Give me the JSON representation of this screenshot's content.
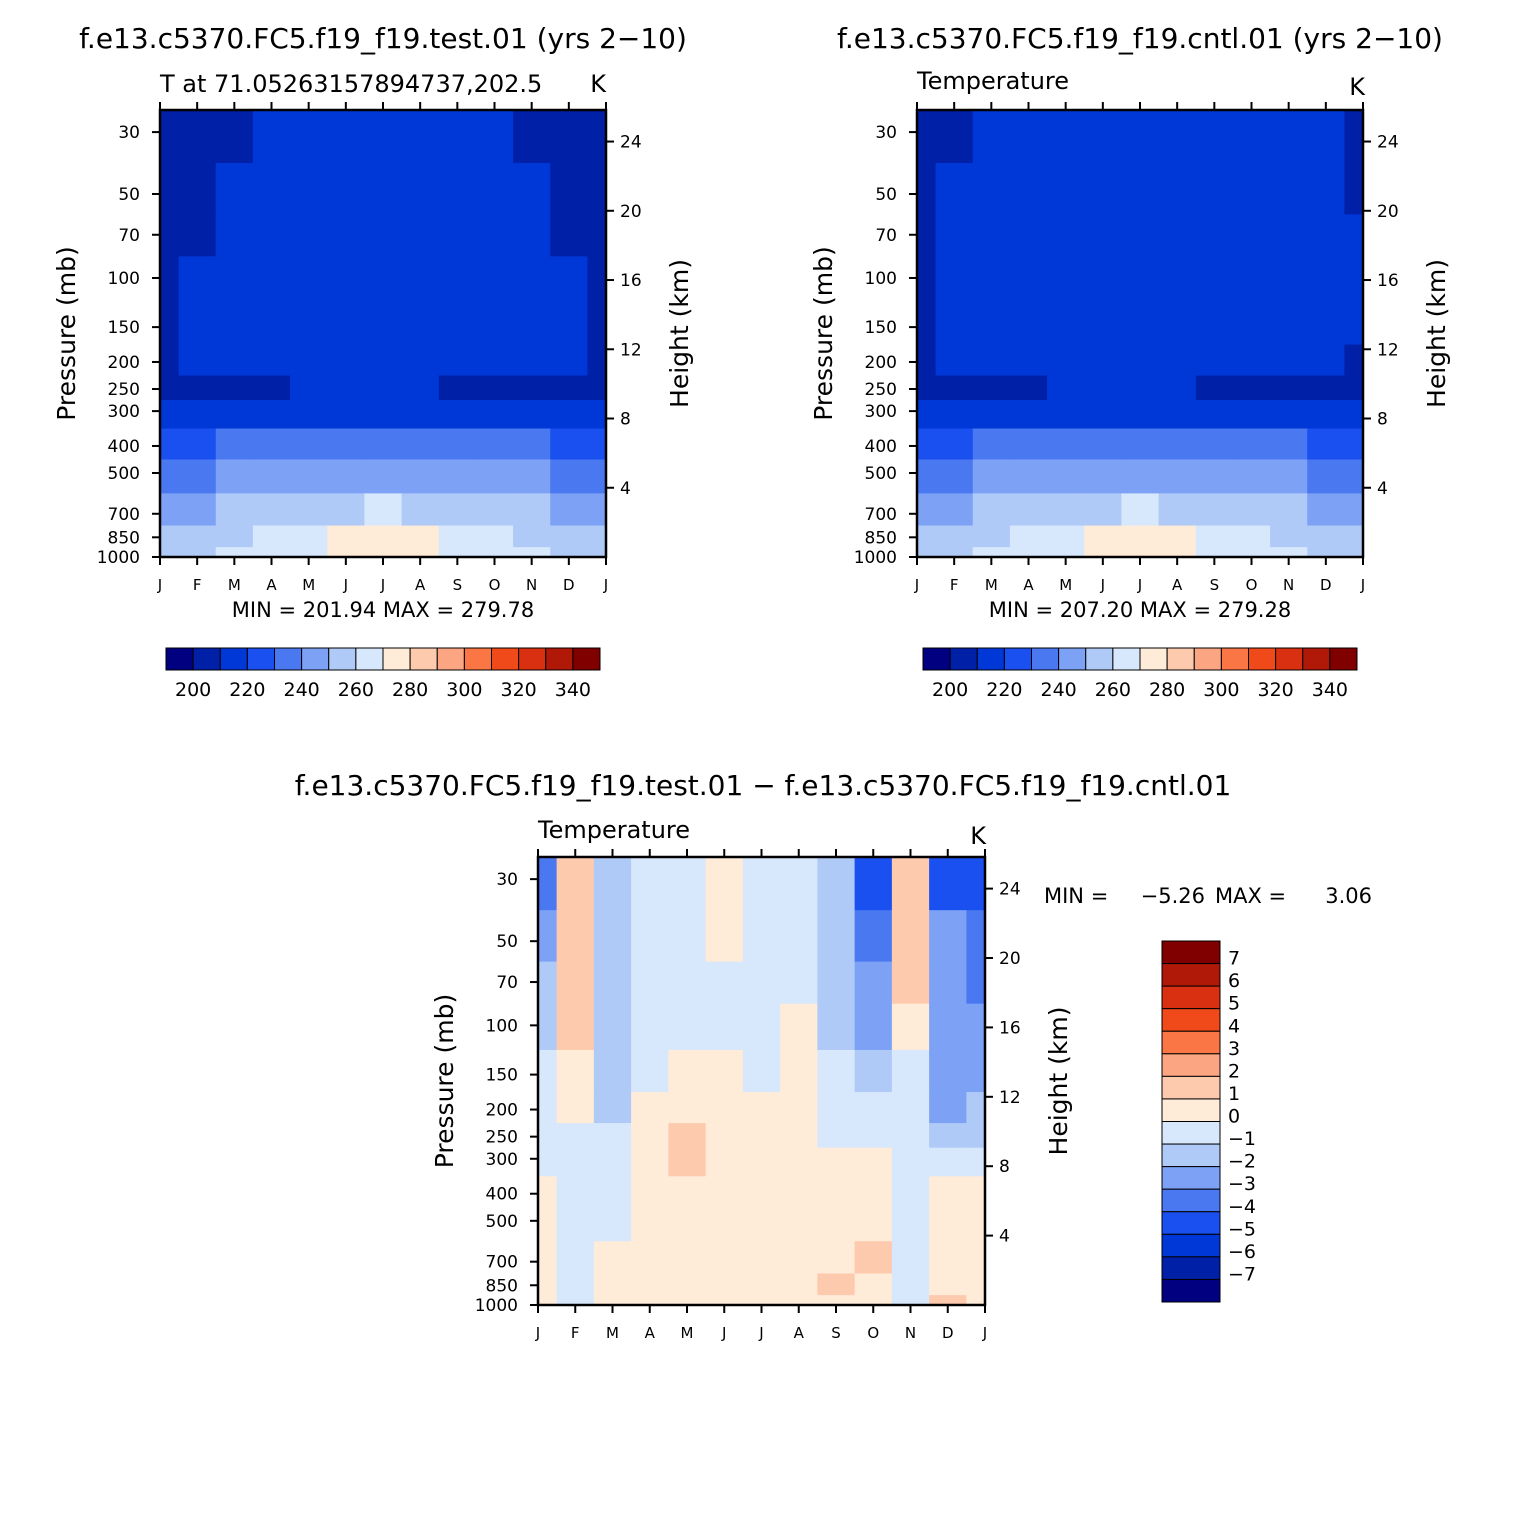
{
  "chart_data": [
    {
      "type": "heatmap",
      "title": "f.e13.c5370.FC5.f19_f19.test.01 (yrs 2−10)",
      "subtitle_left": "T at 71.05263157894737,202.5",
      "subtitle_right": "K",
      "ylabel": "Pressure (mb)",
      "ylabel_right": "Height (km)",
      "x_ticks": [
        "J",
        "F",
        "M",
        "A",
        "M",
        "J",
        "J",
        "A",
        "S",
        "O",
        "N",
        "D",
        "J"
      ],
      "pressure_ticks": [
        30,
        50,
        70,
        100,
        150,
        200,
        250,
        300,
        400,
        500,
        700,
        850,
        1000
      ],
      "height_ticks": [
        24,
        20,
        16,
        12,
        8,
        4
      ],
      "ylim_mb": [
        1000,
        25
      ],
      "stats": "MIN = 201.94 MAX = 279.78",
      "min": 201.94,
      "max": 279.78,
      "colorbar": {
        "labels": [
          "200",
          "220",
          "240",
          "260",
          "280",
          "300",
          "320",
          "340"
        ],
        "colors": [
          "#000080",
          "#0020a8",
          "#0038d8",
          "#1a4ff0",
          "#4a78f0",
          "#7da2f5",
          "#b0caf8",
          "#d8e8fc",
          "#feebd8",
          "#fdcaae",
          "#fba582",
          "#fa7644",
          "#f04a1a",
          "#d83010",
          "#b01808",
          "#800000"
        ]
      },
      "grid": [
        [
          205,
          204,
          208,
          212,
          212,
          212,
          212,
          212,
          212,
          210,
          208,
          205,
          205
        ],
        [
          205,
          207,
          210,
          213,
          213,
          213,
          213,
          213,
          212,
          211,
          210,
          207,
          205
        ],
        [
          207,
          209,
          211,
          214,
          214,
          214,
          214,
          214,
          213,
          212,
          212,
          209,
          207
        ],
        [
          208,
          210,
          211,
          214,
          214,
          214,
          214,
          214,
          213,
          212,
          215,
          210,
          208
        ],
        [
          209,
          210,
          211,
          214,
          214,
          214,
          214,
          214,
          213,
          214,
          215,
          210,
          209
        ],
        [
          209,
          210,
          211,
          212,
          214,
          214,
          214,
          214,
          214,
          213,
          212,
          210,
          209
        ],
        [
          208,
          209,
          209,
          209,
          210,
          212,
          215,
          212,
          209,
          209,
          209,
          209,
          208
        ],
        [
          210,
          210,
          210,
          211,
          212,
          213,
          216,
          213,
          212,
          211,
          210,
          210,
          210
        ],
        [
          229,
          229,
          230,
          232,
          234,
          236,
          238,
          236,
          234,
          232,
          230,
          229,
          229
        ],
        [
          238,
          238,
          240,
          242,
          244,
          246,
          248,
          246,
          244,
          242,
          240,
          238,
          238
        ],
        [
          248,
          248,
          250,
          253,
          256,
          259,
          261,
          259,
          256,
          253,
          250,
          248,
          248
        ],
        [
          256,
          256,
          258,
          262,
          266,
          270,
          272,
          270,
          266,
          262,
          258,
          256,
          256
        ],
        [
          259,
          259,
          261,
          264,
          268,
          272,
          273,
          272,
          268,
          264,
          261,
          259,
          259
        ]
      ]
    },
    {
      "type": "heatmap",
      "title": "f.e13.c5370.FC5.f19_f19.cntl.01 (yrs 2−10)",
      "subtitle_left": "Temperature",
      "subtitle_right": "K",
      "ylabel": "Pressure (mb)",
      "ylabel_right": "Height (km)",
      "x_ticks": [
        "J",
        "F",
        "M",
        "A",
        "M",
        "J",
        "J",
        "A",
        "S",
        "O",
        "N",
        "D",
        "J"
      ],
      "pressure_ticks": [
        30,
        50,
        70,
        100,
        150,
        200,
        250,
        300,
        400,
        500,
        700,
        850,
        1000
      ],
      "height_ticks": [
        24,
        20,
        16,
        12,
        8,
        4
      ],
      "ylim_mb": [
        1000,
        25
      ],
      "stats": "MIN = 207.20 MAX = 279.28",
      "min": 207.2,
      "max": 279.28,
      "colorbar": {
        "labels": [
          "200",
          "220",
          "240",
          "260",
          "280",
          "300",
          "320",
          "340"
        ],
        "colors": [
          "#000080",
          "#0020a8",
          "#0038d8",
          "#1a4ff0",
          "#4a78f0",
          "#7da2f5",
          "#b0caf8",
          "#d8e8fc",
          "#feebd8",
          "#fdcaae",
          "#fba582",
          "#fa7644",
          "#f04a1a",
          "#d83010",
          "#b01808",
          "#800000"
        ]
      },
      "grid": [
        [
          206,
          208,
          211,
          213,
          213,
          213,
          213,
          213,
          213,
          213,
          212,
          210,
          208
        ],
        [
          208,
          210,
          212,
          214,
          214,
          214,
          214,
          214,
          213,
          213,
          213,
          211,
          209
        ],
        [
          209,
          210,
          211,
          214,
          214,
          214,
          214,
          214,
          214,
          213,
          213,
          211,
          210
        ],
        [
          209,
          210,
          211,
          214,
          214,
          214,
          214,
          214,
          214,
          214,
          213,
          211,
          210
        ],
        [
          209,
          210,
          212,
          214,
          214,
          214,
          214,
          214,
          214,
          214,
          214,
          212,
          210
        ],
        [
          209,
          210,
          211,
          212,
          214,
          214,
          214,
          214,
          213,
          213,
          212,
          211,
          209
        ],
        [
          208,
          209,
          209,
          209,
          210,
          212,
          215,
          212,
          209,
          209,
          209,
          209,
          208
        ],
        [
          210,
          210,
          210,
          211,
          212,
          213,
          216,
          213,
          212,
          211,
          210,
          210,
          210
        ],
        [
          229,
          229,
          230,
          232,
          234,
          236,
          238,
          236,
          234,
          232,
          230,
          229,
          229
        ],
        [
          238,
          238,
          240,
          242,
          244,
          246,
          248,
          246,
          244,
          242,
          240,
          238,
          238
        ],
        [
          248,
          248,
          250,
          253,
          256,
          259,
          261,
          259,
          256,
          253,
          250,
          248,
          248
        ],
        [
          256,
          256,
          258,
          262,
          266,
          270,
          272,
          270,
          266,
          262,
          258,
          256,
          256
        ],
        [
          259,
          259,
          261,
          264,
          268,
          272,
          273,
          272,
          268,
          264,
          261,
          259,
          259
        ]
      ]
    },
    {
      "type": "heatmap",
      "title": "f.e13.c5370.FC5.f19_f19.test.01 − f.e13.c5370.FC5.f19_f19.cntl.01",
      "subtitle_left": "Temperature",
      "subtitle_right": "K",
      "ylabel": "Pressure (mb)",
      "ylabel_right": "Height (km)",
      "x_ticks": [
        "J",
        "F",
        "M",
        "A",
        "M",
        "J",
        "J",
        "A",
        "S",
        "O",
        "N",
        "D",
        "J"
      ],
      "pressure_ticks": [
        30,
        50,
        70,
        100,
        150,
        200,
        250,
        300,
        400,
        500,
        700,
        850,
        1000
      ],
      "height_ticks": [
        24,
        20,
        16,
        12,
        8,
        4
      ],
      "ylim_mb": [
        1000,
        25
      ],
      "stats_min_label": "MIN =",
      "stats_min": "−5.26",
      "stats_max_label": "MAX =",
      "stats_max": "3.06",
      "min": -5.26,
      "max": 3.06,
      "colorbar": {
        "labels": [
          "7",
          "6",
          "5",
          "4",
          "3",
          "2",
          "1",
          "0",
          "−1",
          "−2",
          "−3",
          "−4",
          "−5",
          "−6",
          "−7"
        ],
        "colors": [
          "#800000",
          "#b01808",
          "#d83010",
          "#f04a1a",
          "#fa7644",
          "#fba582",
          "#fdcaae",
          "#feebd8",
          "#d8e8fc",
          "#b0caf8",
          "#7da2f5",
          "#4a78f0",
          "#1a4ff0",
          "#0038d8",
          "#0020a8",
          "#000080"
        ]
      },
      "grid": [
        [
          -3.5,
          1.5,
          -1.5,
          -0.5,
          -0.5,
          0.3,
          -0.5,
          -0.5,
          -1.5,
          -4.0,
          1.5,
          -4.0,
          -4.5
        ],
        [
          -2.0,
          1.5,
          -1.5,
          -0.5,
          -0.5,
          0.3,
          -0.5,
          -0.5,
          -1.5,
          -3.0,
          1.5,
          -2.5,
          -3.5
        ],
        [
          -1.5,
          1.2,
          -1.5,
          -0.5,
          -0.5,
          -0.5,
          -0.5,
          -0.5,
          -1.5,
          -2.5,
          1.2,
          -2.5,
          -3.0
        ],
        [
          -1.0,
          1.2,
          -1.2,
          -0.5,
          -0.5,
          -0.5,
          -0.5,
          0.3,
          -1.2,
          -2.0,
          1.0,
          -2.5,
          -2.5
        ],
        [
          -0.5,
          1.0,
          -1.2,
          -0.5,
          0.3,
          0.3,
          -0.5,
          0.3,
          -0.5,
          -1.5,
          -0.5,
          -2.5,
          -2.0
        ],
        [
          -0.5,
          1.0,
          -1.2,
          0.3,
          0.3,
          0.3,
          0.3,
          0.3,
          -0.5,
          -0.5,
          -0.5,
          -2.5,
          -1.5
        ],
        [
          -0.5,
          -0.5,
          -0.5,
          0.3,
          1.2,
          0.3,
          0.3,
          0.3,
          -0.5,
          -0.5,
          -0.5,
          -1.5,
          -1.0
        ],
        [
          -0.5,
          -0.5,
          -0.5,
          0.3,
          1.2,
          0.3,
          0.3,
          0.3,
          0.3,
          0.3,
          -0.5,
          -0.5,
          -0.5
        ],
        [
          0.3,
          -0.5,
          -0.5,
          0.3,
          0.3,
          0.3,
          0.3,
          0.3,
          0.3,
          0.3,
          -0.5,
          0.3,
          0.3
        ],
        [
          0.3,
          -0.5,
          -0.5,
          0.3,
          0.3,
          0.3,
          0.3,
          0.3,
          0.3,
          0.3,
          -0.5,
          0.3,
          0.3
        ],
        [
          0.3,
          -0.5,
          0.3,
          0.3,
          0.3,
          0.3,
          0.3,
          0.3,
          0.3,
          1.2,
          -0.5,
          0.3,
          0.3
        ],
        [
          0.3,
          -0.5,
          0.3,
          0.3,
          0.3,
          0.3,
          0.3,
          0.3,
          1.2,
          0.3,
          -0.5,
          0.3,
          0.3
        ],
        [
          0.3,
          -0.5,
          0.3,
          0.3,
          0.3,
          0.3,
          0.3,
          0.3,
          0.3,
          0.3,
          -0.5,
          1.2,
          0.3
        ]
      ]
    }
  ]
}
